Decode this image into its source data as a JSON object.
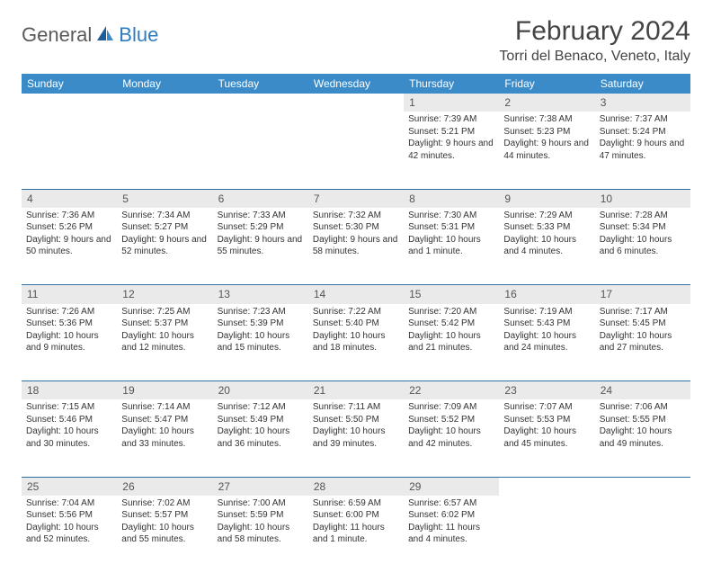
{
  "logo": {
    "text1": "General",
    "text2": "Blue",
    "color1": "#5a5a5a",
    "color2": "#2f7bbf"
  },
  "title": "February 2024",
  "location": "Torri del Benaco, Veneto, Italy",
  "colors": {
    "header_bg": "#3b8bc8",
    "header_text": "#ffffff",
    "daynum_bg": "#eaeaea",
    "border": "#2f6fa3",
    "text": "#333333"
  },
  "day_headers": [
    "Sunday",
    "Monday",
    "Tuesday",
    "Wednesday",
    "Thursday",
    "Friday",
    "Saturday"
  ],
  "weeks": [
    [
      null,
      null,
      null,
      null,
      {
        "n": "1",
        "sr": "7:39 AM",
        "ss": "5:21 PM",
        "dl": "9 hours and 42 minutes."
      },
      {
        "n": "2",
        "sr": "7:38 AM",
        "ss": "5:23 PM",
        "dl": "9 hours and 44 minutes."
      },
      {
        "n": "3",
        "sr": "7:37 AM",
        "ss": "5:24 PM",
        "dl": "9 hours and 47 minutes."
      }
    ],
    [
      {
        "n": "4",
        "sr": "7:36 AM",
        "ss": "5:26 PM",
        "dl": "9 hours and 50 minutes."
      },
      {
        "n": "5",
        "sr": "7:34 AM",
        "ss": "5:27 PM",
        "dl": "9 hours and 52 minutes."
      },
      {
        "n": "6",
        "sr": "7:33 AM",
        "ss": "5:29 PM",
        "dl": "9 hours and 55 minutes."
      },
      {
        "n": "7",
        "sr": "7:32 AM",
        "ss": "5:30 PM",
        "dl": "9 hours and 58 minutes."
      },
      {
        "n": "8",
        "sr": "7:30 AM",
        "ss": "5:31 PM",
        "dl": "10 hours and 1 minute."
      },
      {
        "n": "9",
        "sr": "7:29 AM",
        "ss": "5:33 PM",
        "dl": "10 hours and 4 minutes."
      },
      {
        "n": "10",
        "sr": "7:28 AM",
        "ss": "5:34 PM",
        "dl": "10 hours and 6 minutes."
      }
    ],
    [
      {
        "n": "11",
        "sr": "7:26 AM",
        "ss": "5:36 PM",
        "dl": "10 hours and 9 minutes."
      },
      {
        "n": "12",
        "sr": "7:25 AM",
        "ss": "5:37 PM",
        "dl": "10 hours and 12 minutes."
      },
      {
        "n": "13",
        "sr": "7:23 AM",
        "ss": "5:39 PM",
        "dl": "10 hours and 15 minutes."
      },
      {
        "n": "14",
        "sr": "7:22 AM",
        "ss": "5:40 PM",
        "dl": "10 hours and 18 minutes."
      },
      {
        "n": "15",
        "sr": "7:20 AM",
        "ss": "5:42 PM",
        "dl": "10 hours and 21 minutes."
      },
      {
        "n": "16",
        "sr": "7:19 AM",
        "ss": "5:43 PM",
        "dl": "10 hours and 24 minutes."
      },
      {
        "n": "17",
        "sr": "7:17 AM",
        "ss": "5:45 PM",
        "dl": "10 hours and 27 minutes."
      }
    ],
    [
      {
        "n": "18",
        "sr": "7:15 AM",
        "ss": "5:46 PM",
        "dl": "10 hours and 30 minutes."
      },
      {
        "n": "19",
        "sr": "7:14 AM",
        "ss": "5:47 PM",
        "dl": "10 hours and 33 minutes."
      },
      {
        "n": "20",
        "sr": "7:12 AM",
        "ss": "5:49 PM",
        "dl": "10 hours and 36 minutes."
      },
      {
        "n": "21",
        "sr": "7:11 AM",
        "ss": "5:50 PM",
        "dl": "10 hours and 39 minutes."
      },
      {
        "n": "22",
        "sr": "7:09 AM",
        "ss": "5:52 PM",
        "dl": "10 hours and 42 minutes."
      },
      {
        "n": "23",
        "sr": "7:07 AM",
        "ss": "5:53 PM",
        "dl": "10 hours and 45 minutes."
      },
      {
        "n": "24",
        "sr": "7:06 AM",
        "ss": "5:55 PM",
        "dl": "10 hours and 49 minutes."
      }
    ],
    [
      {
        "n": "25",
        "sr": "7:04 AM",
        "ss": "5:56 PM",
        "dl": "10 hours and 52 minutes."
      },
      {
        "n": "26",
        "sr": "7:02 AM",
        "ss": "5:57 PM",
        "dl": "10 hours and 55 minutes."
      },
      {
        "n": "27",
        "sr": "7:00 AM",
        "ss": "5:59 PM",
        "dl": "10 hours and 58 minutes."
      },
      {
        "n": "28",
        "sr": "6:59 AM",
        "ss": "6:00 PM",
        "dl": "11 hours and 1 minute."
      },
      {
        "n": "29",
        "sr": "6:57 AM",
        "ss": "6:02 PM",
        "dl": "11 hours and 4 minutes."
      },
      null,
      null
    ]
  ],
  "labels": {
    "sunrise": "Sunrise: ",
    "sunset": "Sunset: ",
    "daylight": "Daylight: "
  }
}
